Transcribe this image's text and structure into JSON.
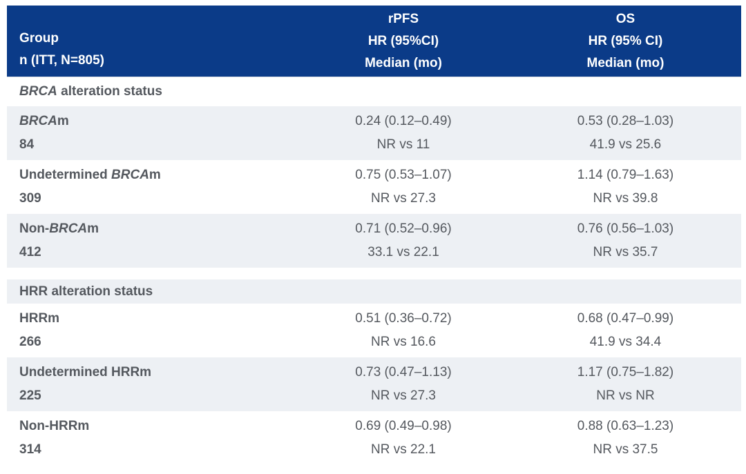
{
  "colors": {
    "header_bg": "#0b3b88",
    "header_text": "#ffffff",
    "row_shade_bg": "#edf0f4",
    "body_text": "#54585e"
  },
  "chart_data": {
    "type": "table",
    "header": {
      "group": [
        "Group",
        "n (ITT, N=805)"
      ],
      "rpfs": [
        "rPFS",
        "HR (95%CI)",
        "Median (mo)"
      ],
      "os": [
        "OS",
        "HR (95% CI)",
        "Median (mo)"
      ]
    },
    "sections": [
      {
        "title_italic": "BRCA",
        "title_rest": " alteration status",
        "rows": [
          {
            "group_prefix": "",
            "group_italic": "BRCA",
            "group_suffix": "m",
            "n": "84",
            "rpfs_hr": "0.24 (0.12–0.49)",
            "rpfs_median": "NR vs 11",
            "os_hr": "0.53 (0.28–1.03)",
            "os_median": "41.9 vs 25.6"
          },
          {
            "group_prefix": "Undetermined ",
            "group_italic": "BRCA",
            "group_suffix": "m",
            "n": "309",
            "rpfs_hr": "0.75 (0.53–1.07)",
            "rpfs_median": "NR vs 27.3",
            "os_hr": "1.14 (0.79–1.63)",
            "os_median": "NR vs 39.8"
          },
          {
            "group_prefix": "Non-",
            "group_italic": "BRCA",
            "group_suffix": "m",
            "n": "412",
            "rpfs_hr": "0.71 (0.52–0.96)",
            "rpfs_median": "33.1 vs 22.1",
            "os_hr": "0.76 (0.56–1.03)",
            "os_median": "NR vs 35.7"
          }
        ]
      },
      {
        "title_italic": "",
        "title_rest": "HRR alteration status",
        "rows": [
          {
            "group_prefix": "HRRm",
            "group_italic": "",
            "group_suffix": "",
            "n": "266",
            "rpfs_hr": "0.51 (0.36–0.72)",
            "rpfs_median": "NR vs 16.6",
            "os_hr": "0.68 (0.47–0.99)",
            "os_median": "41.9 vs 34.4"
          },
          {
            "group_prefix": "Undetermined HRRm",
            "group_italic": "",
            "group_suffix": "",
            "n": "225",
            "rpfs_hr": "0.73 (0.47–1.13)",
            "rpfs_median": "NR vs 27.3",
            "os_hr": "1.17 (0.75–1.82)",
            "os_median": "NR vs NR"
          },
          {
            "group_prefix": "Non-HRRm",
            "group_italic": "",
            "group_suffix": "",
            "n": "314",
            "rpfs_hr": "0.69 (0.49–0.98)",
            "rpfs_median": "NR vs 22.1",
            "os_hr": "0.88 (0.63–1.23)",
            "os_median": "NR vs 37.5"
          }
        ]
      }
    ]
  }
}
